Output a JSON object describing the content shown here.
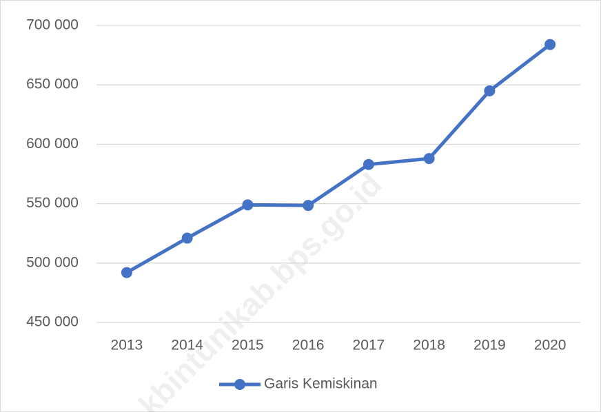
{
  "chart_data": {
    "type": "line",
    "categories": [
      "2013",
      "2014",
      "2015",
      "2016",
      "2017",
      "2018",
      "2019",
      "2020"
    ],
    "series": [
      {
        "name": "Garis Kemiskinan",
        "color": "#4472c4",
        "values": [
          492000,
          521000,
          549000,
          548500,
          583000,
          588000,
          645000,
          684000
        ]
      }
    ],
    "ylim": [
      450000,
      700000
    ],
    "yticks": [
      {
        "value": 450000,
        "label": "450 000"
      },
      {
        "value": 500000,
        "label": "500 000"
      },
      {
        "value": 550000,
        "label": "550 000"
      },
      {
        "value": 600000,
        "label": "600 000"
      },
      {
        "value": 650000,
        "label": "650 000"
      },
      {
        "value": 700000,
        "label": "700 000"
      }
    ],
    "grid": true,
    "legend": "bottom",
    "watermark": "kbintunikab.bps.go.id"
  }
}
